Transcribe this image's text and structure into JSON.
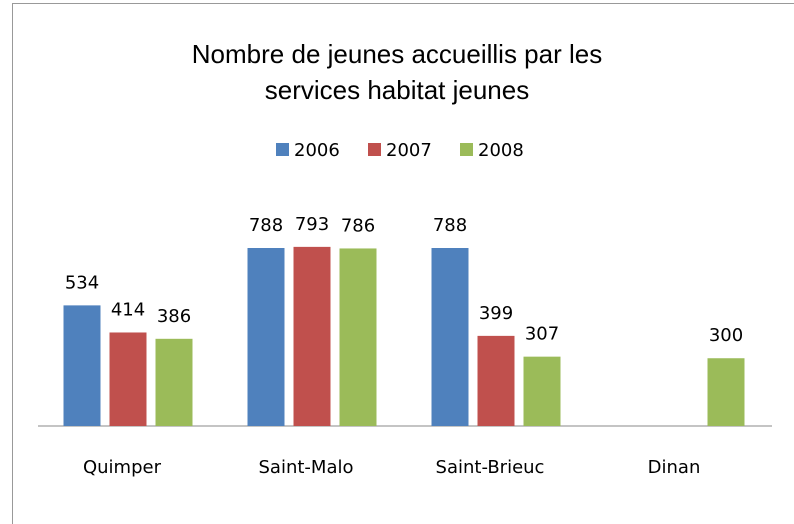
{
  "chart_data": {
    "type": "bar",
    "title": "Nombre de jeunes accueillis par les services habitat jeunes",
    "categories": [
      "Quimper",
      "Saint-Malo",
      "Saint-Brieuc",
      "Dinan"
    ],
    "series": [
      {
        "name": "2006",
        "color": "#4f81bd",
        "values": [
          534,
          788,
          788,
          null
        ]
      },
      {
        "name": "2007",
        "color": "#c0504d",
        "values": [
          414,
          793,
          399,
          null
        ]
      },
      {
        "name": "2008",
        "color": "#9bbb59",
        "values": [
          386,
          786,
          307,
          300
        ]
      }
    ],
    "legend": "top",
    "grid": false
  }
}
